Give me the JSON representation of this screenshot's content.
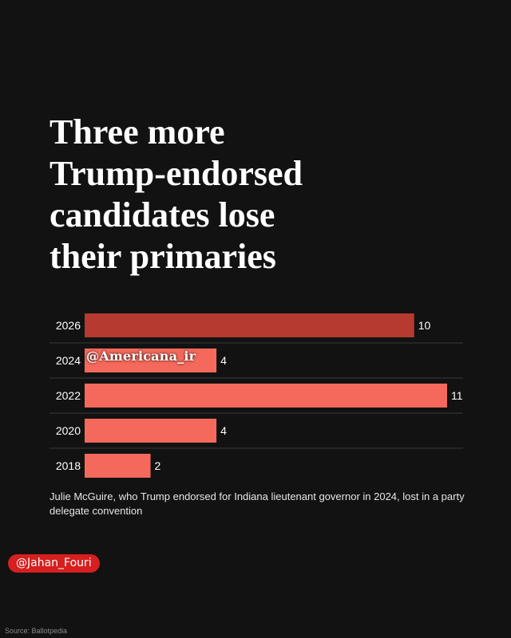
{
  "headline": "Three more\nTrump-endorsed\ncandidates lose\ntheir primaries",
  "colors": {
    "background": "#121212",
    "highlight_bar": "#b63a2f",
    "bar": "#f4695b",
    "separator": "#3a3a3a",
    "handle_badge": "#d61f1f"
  },
  "chart_data": {
    "type": "bar",
    "orientation": "horizontal",
    "categories": [
      "2026",
      "2024",
      "2022",
      "2020",
      "2018"
    ],
    "values": [
      10,
      4,
      11,
      4,
      2
    ],
    "highlight_category": "2026",
    "xlim": [
      0,
      11
    ],
    "grid": false,
    "title": "",
    "xlabel": "",
    "ylabel": ""
  },
  "footnote": "Julie McGuire, who Trump endorsed for Indiana lieutenant governor in 2024, lost in a party delegate convention",
  "watermark": "@Americana_ir",
  "handle": "@Jahan_Fouri",
  "source": "Source: Ballotpedia"
}
